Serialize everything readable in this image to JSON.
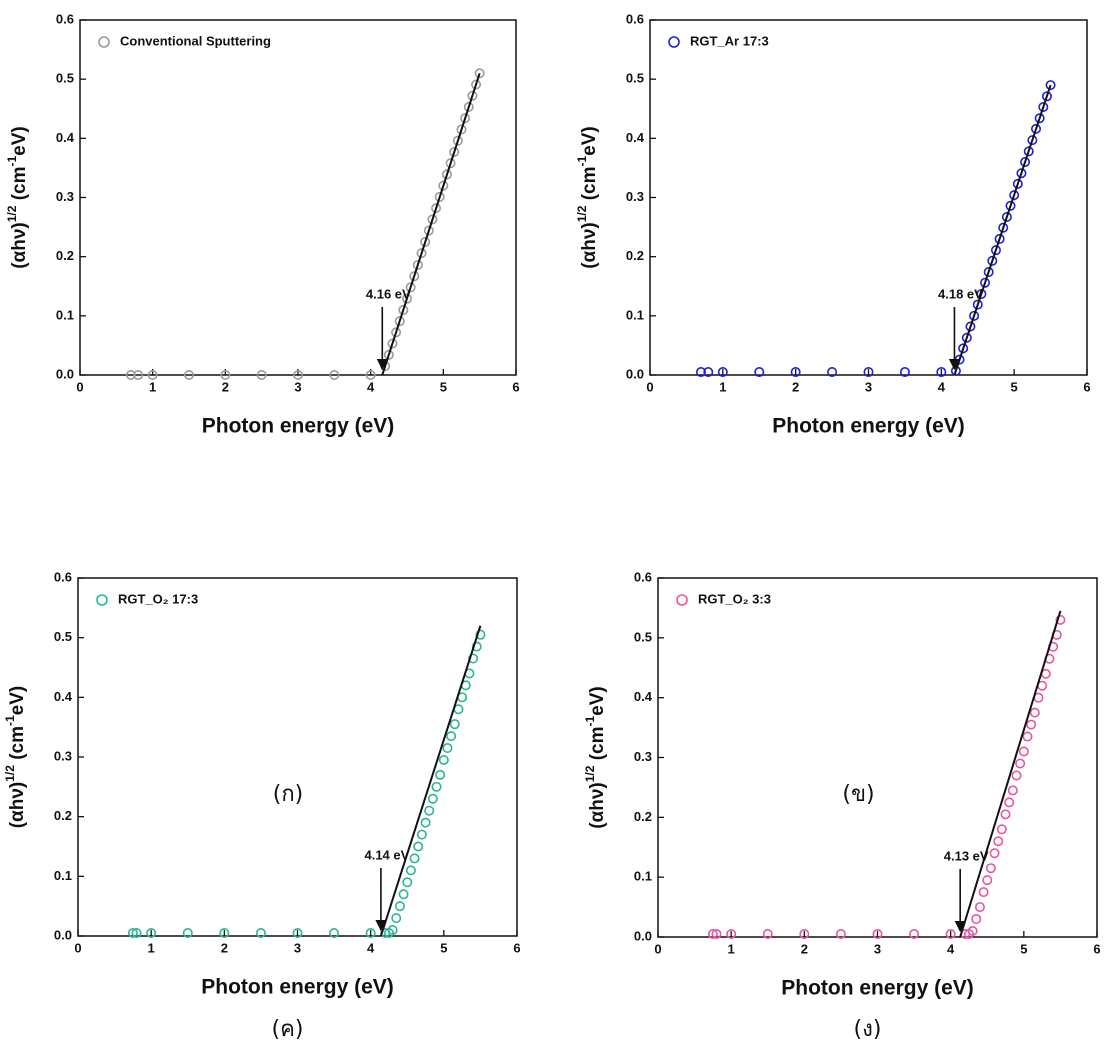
{
  "chart_data": [
    {
      "type": "scatter",
      "caption": "(ก)",
      "xlabel": "Photon energy (eV)",
      "ylabel": [
        {
          "text": "(αhν)"
        },
        {
          "text": "1/2",
          "sup": true
        },
        {
          "text": " (cm"
        },
        {
          "text": "-1",
          "sup": true
        },
        {
          "text": "eV)"
        }
      ],
      "xlim": [
        0,
        6
      ],
      "ylim": [
        0,
        0.6
      ],
      "xticks": [
        0,
        1,
        2,
        3,
        4,
        5,
        6
      ],
      "yticks": [
        {
          "value": 0,
          "label": "0.0"
        },
        0.1,
        0.2,
        0.3,
        0.4,
        0.5,
        0.6
      ],
      "x": [
        0.7,
        0.8,
        1.0,
        1.5,
        2.0,
        2.5,
        3.0,
        3.5,
        4.0,
        4.2,
        4.25,
        4.3,
        4.35,
        4.4,
        4.45,
        4.5,
        4.55,
        4.6,
        4.65,
        4.7,
        4.75,
        4.8,
        4.85,
        4.9,
        4.95,
        5.0,
        5.05,
        5.1,
        5.15,
        5.2,
        5.25,
        5.3,
        5.35,
        5.4,
        5.45,
        5.5
      ],
      "series": [
        {
          "name": "Conventional Sputtering",
          "color": "#9a9a9a",
          "values": [
            0,
            0,
            0,
            0,
            0,
            0,
            0,
            0,
            0,
            0.015,
            0.034,
            0.053,
            0.072,
            0.091,
            0.11,
            0.129,
            0.148,
            0.167,
            0.186,
            0.206,
            0.225,
            0.244,
            0.263,
            0.282,
            0.301,
            0.32,
            0.339,
            0.358,
            0.377,
            0.396,
            0.415,
            0.434,
            0.453,
            0.472,
            0.491,
            0.51
          ]
        }
      ],
      "fit": {
        "x": [
          4.16,
          5.5
        ],
        "values": [
          0,
          0.51
        ]
      },
      "annotation": {
        "text": "4.16 eV",
        "x": 4.16
      }
    },
    {
      "type": "scatter",
      "caption": "(ข)",
      "xlabel": "Photon energy (eV)",
      "ylabel": [
        {
          "text": "(αhν)"
        },
        {
          "text": "1/2",
          "sup": true
        },
        {
          "text": " (cm"
        },
        {
          "text": "-1",
          "sup": true
        },
        {
          "text": "eV)"
        }
      ],
      "xlim": [
        0,
        6
      ],
      "ylim": [
        0,
        0.6
      ],
      "xticks": [
        0,
        1,
        2,
        3,
        4,
        5,
        6
      ],
      "yticks": [
        {
          "value": 0,
          "label": "0.0"
        },
        0.1,
        0.2,
        0.3,
        0.4,
        0.5,
        0.6
      ],
      "x": [
        0.7,
        0.8,
        1.0,
        1.5,
        2.0,
        2.5,
        3.0,
        3.5,
        4.0,
        4.2,
        4.25,
        4.3,
        4.35,
        4.4,
        4.45,
        4.5,
        4.55,
        4.6,
        4.65,
        4.7,
        4.75,
        4.8,
        4.85,
        4.9,
        4.95,
        5.0,
        5.05,
        5.1,
        5.15,
        5.2,
        5.25,
        5.3,
        5.35,
        5.4,
        5.45,
        5.5
      ],
      "series": [
        {
          "name": "RGT_Ar 17:3",
          "color": "#1f1fd6",
          "values": [
            0.005,
            0.005,
            0.005,
            0.005,
            0.005,
            0.005,
            0.005,
            0.005,
            0.005,
            0.007,
            0.026,
            0.045,
            0.063,
            0.082,
            0.1,
            0.119,
            0.137,
            0.156,
            0.174,
            0.193,
            0.211,
            0.23,
            0.249,
            0.267,
            0.286,
            0.304,
            0.323,
            0.341,
            0.36,
            0.378,
            0.397,
            0.416,
            0.434,
            0.453,
            0.471,
            0.49
          ]
        }
      ],
      "fit": {
        "x": [
          4.18,
          5.5
        ],
        "values": [
          0,
          0.49
        ]
      },
      "annotation": {
        "text": "4.18 eV",
        "x": 4.18
      }
    },
    {
      "type": "scatter",
      "caption": "(ค)",
      "xlabel": "Photon energy (eV)",
      "ylabel": [
        {
          "text": "(αhν)"
        },
        {
          "text": "1/2",
          "sup": true
        },
        {
          "text": " (cm"
        },
        {
          "text": "-1",
          "sup": true
        },
        {
          "text": "eV)"
        }
      ],
      "xlim": [
        0,
        6
      ],
      "ylim": [
        0,
        0.6
      ],
      "xticks": [
        0,
        1,
        2,
        3,
        4,
        5,
        6
      ],
      "yticks": [
        {
          "value": 0,
          "label": "0.0"
        },
        0.1,
        0.2,
        0.3,
        0.4,
        0.5,
        0.6
      ],
      "x": [
        0.75,
        0.8,
        1.0,
        1.5,
        2.0,
        2.5,
        3.0,
        3.5,
        4.0,
        4.2,
        4.25,
        4.3,
        4.35,
        4.4,
        4.45,
        4.5,
        4.55,
        4.6,
        4.65,
        4.7,
        4.75,
        4.8,
        4.85,
        4.9,
        4.95,
        5.0,
        5.05,
        5.1,
        5.15,
        5.2,
        5.25,
        5.3,
        5.35,
        5.4,
        5.45,
        5.5
      ],
      "series": [
        {
          "name": "RGT_O₂ 17:3",
          "color": "#2bb596",
          "values": [
            0.005,
            0.005,
            0.005,
            0.005,
            0.005,
            0.005,
            0.005,
            0.005,
            0.005,
            0.005,
            0.005,
            0.01,
            0.03,
            0.05,
            0.07,
            0.09,
            0.11,
            0.13,
            0.15,
            0.17,
            0.19,
            0.21,
            0.23,
            0.25,
            0.27,
            0.295,
            0.315,
            0.335,
            0.355,
            0.38,
            0.4,
            0.42,
            0.44,
            0.465,
            0.485,
            0.505
          ]
        }
      ],
      "fit": {
        "x": [
          4.14,
          5.5
        ],
        "values": [
          0,
          0.52
        ]
      },
      "annotation": {
        "text": "4.14 eV",
        "x": 4.14
      }
    },
    {
      "type": "scatter",
      "caption": "(ง)",
      "xlabel": "Photon energy (eV)",
      "ylabel": [
        {
          "text": "(αhν)"
        },
        {
          "text": "1/2",
          "sup": true
        },
        {
          "text": " (cm"
        },
        {
          "text": "-1",
          "sup": true
        },
        {
          "text": "eV)"
        }
      ],
      "xlim": [
        0,
        6
      ],
      "ylim": [
        0,
        0.6
      ],
      "xticks": [
        0,
        1,
        2,
        3,
        4,
        5,
        6
      ],
      "yticks": [
        {
          "value": 0,
          "label": "0.0"
        },
        0.1,
        0.2,
        0.3,
        0.4,
        0.5,
        0.6
      ],
      "x": [
        0.75,
        0.8,
        1.0,
        1.5,
        2.0,
        2.5,
        3.0,
        3.5,
        4.0,
        4.2,
        4.25,
        4.3,
        4.35,
        4.4,
        4.45,
        4.5,
        4.55,
        4.6,
        4.65,
        4.7,
        4.75,
        4.8,
        4.85,
        4.9,
        4.95,
        5.0,
        5.05,
        5.1,
        5.15,
        5.2,
        5.25,
        5.3,
        5.35,
        5.4,
        5.45,
        5.5
      ],
      "series": [
        {
          "name": "RGT_O₂ 3:3",
          "color": "#e8569f",
          "values": [
            0.005,
            0.005,
            0.005,
            0.005,
            0.005,
            0.005,
            0.005,
            0.005,
            0.005,
            0.005,
            0.005,
            0.01,
            0.03,
            0.05,
            0.075,
            0.095,
            0.115,
            0.14,
            0.16,
            0.18,
            0.205,
            0.225,
            0.245,
            0.27,
            0.29,
            0.31,
            0.335,
            0.355,
            0.375,
            0.4,
            0.42,
            0.44,
            0.465,
            0.485,
            0.505,
            0.53
          ]
        }
      ],
      "fit": {
        "x": [
          4.13,
          5.5
        ],
        "values": [
          0,
          0.545
        ]
      },
      "annotation": {
        "text": "4.13 eV",
        "x": 4.13
      }
    }
  ]
}
